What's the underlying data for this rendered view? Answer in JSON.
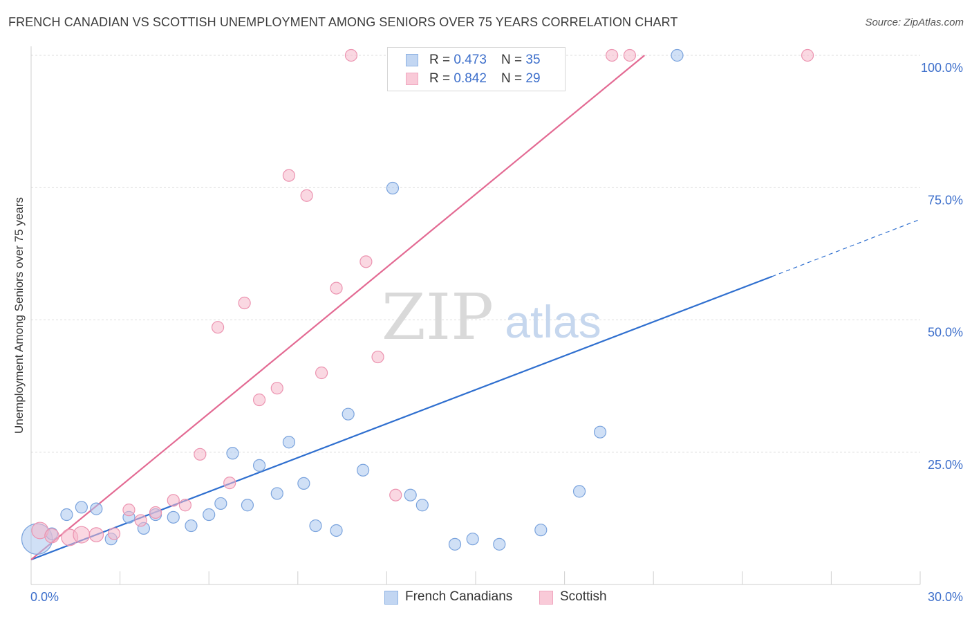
{
  "title": "FRENCH CANADIAN VS SCOTTISH UNEMPLOYMENT AMONG SENIORS OVER 75 YEARS CORRELATION CHART",
  "source": "Source: ZipAtlas.com",
  "watermark": {
    "zip": "ZIP",
    "atlas": "atlas"
  },
  "legend_top": [
    {
      "r_label": "R = ",
      "r_value": "0.473",
      "n_label": "N = ",
      "n_value": "35"
    },
    {
      "r_label": "R = ",
      "r_value": "0.842",
      "n_label": "N = ",
      "n_value": "29"
    }
  ],
  "legend_bottom": [
    "French Canadians",
    "Scottish"
  ],
  "chart_data": {
    "type": "scatter",
    "title": "FRENCH CANADIAN VS SCOTTISH UNEMPLOYMENT AMONG SENIORS OVER 75 YEARS CORRELATION CHART",
    "xlabel": "",
    "ylabel": "Unemployment Among Seniors over 75 years",
    "xlim": [
      0,
      30
    ],
    "ylim": [
      0,
      100
    ],
    "x_tick_labels": [
      "0.0%",
      "30.0%"
    ],
    "y_tick_labels": [
      "25.0%",
      "50.0%",
      "75.0%",
      "100.0%"
    ],
    "y_ticks": [
      25,
      50,
      75,
      100
    ],
    "grid": true,
    "legend_position": "top-center",
    "colors": {
      "french_canadians": "#a9c6ee",
      "french_canadians_edge": "#7aa3dd",
      "french_canadians_line": "#2f6fcf",
      "scottish": "#f5b8cb",
      "scottish_edge": "#ec93b0",
      "scottish_line": "#e36a93",
      "axis_label": "#3d6fcb"
    },
    "series": [
      {
        "name": "French Canadians",
        "r": 0.473,
        "n": 35,
        "points": [
          [
            0.2,
            8.6,
            26
          ],
          [
            0.7,
            9.6,
            10
          ],
          [
            1.2,
            13.2,
            10
          ],
          [
            1.7,
            14.6,
            10
          ],
          [
            2.2,
            14.3,
            10
          ],
          [
            2.7,
            8.6,
            10
          ],
          [
            3.3,
            12.7,
            10
          ],
          [
            3.8,
            10.6,
            10
          ],
          [
            4.2,
            13.2,
            10
          ],
          [
            4.8,
            12.7,
            10
          ],
          [
            5.4,
            11.1,
            10
          ],
          [
            6.0,
            13.2,
            10
          ],
          [
            6.4,
            15.3,
            10
          ],
          [
            6.8,
            24.8,
            10
          ],
          [
            7.3,
            15.0,
            10
          ],
          [
            7.7,
            22.5,
            10
          ],
          [
            8.3,
            17.2,
            10
          ],
          [
            8.7,
            26.9,
            10
          ],
          [
            9.2,
            19.1,
            10
          ],
          [
            9.6,
            11.1,
            10
          ],
          [
            10.3,
            10.2,
            10
          ],
          [
            10.7,
            32.2,
            10
          ],
          [
            11.2,
            21.6,
            10
          ],
          [
            12.2,
            74.9,
            10
          ],
          [
            12.8,
            16.9,
            10
          ],
          [
            13.2,
            15.0,
            10
          ],
          [
            13.7,
            100.0,
            10
          ],
          [
            14.3,
            7.6,
            10
          ],
          [
            14.9,
            8.6,
            10
          ],
          [
            15.8,
            7.6,
            10
          ],
          [
            16.1,
            100.0,
            10
          ],
          [
            17.2,
            10.3,
            10
          ],
          [
            18.5,
            17.6,
            10
          ],
          [
            19.2,
            28.8,
            10
          ],
          [
            21.8,
            100.0,
            10
          ]
        ]
      },
      {
        "name": "Scottish",
        "r": 0.842,
        "n": 29,
        "points": [
          [
            0.3,
            10.2,
            14
          ],
          [
            0.7,
            9.2,
            12
          ],
          [
            1.3,
            8.9,
            14
          ],
          [
            1.7,
            9.4,
            14
          ],
          [
            2.2,
            9.4,
            12
          ],
          [
            2.8,
            9.6,
            10
          ],
          [
            3.3,
            14.1,
            10
          ],
          [
            3.7,
            12.1,
            10
          ],
          [
            4.2,
            13.6,
            10
          ],
          [
            4.8,
            15.9,
            10
          ],
          [
            5.2,
            15.0,
            10
          ],
          [
            5.7,
            24.6,
            10
          ],
          [
            6.3,
            48.6,
            10
          ],
          [
            6.7,
            19.2,
            10
          ],
          [
            7.2,
            53.2,
            10
          ],
          [
            7.7,
            34.9,
            10
          ],
          [
            8.3,
            37.1,
            10
          ],
          [
            8.7,
            77.3,
            10
          ],
          [
            9.3,
            73.5,
            10
          ],
          [
            9.8,
            40.0,
            10
          ],
          [
            10.3,
            56.0,
            10
          ],
          [
            10.8,
            100.0,
            10
          ],
          [
            11.3,
            61.0,
            10
          ],
          [
            11.7,
            43.0,
            10
          ],
          [
            12.3,
            16.9,
            10
          ],
          [
            14.0,
            100.0,
            10
          ],
          [
            19.6,
            100.0,
            10
          ],
          [
            20.2,
            100.0,
            10
          ],
          [
            26.2,
            100.0,
            10
          ]
        ]
      }
    ],
    "trend_lines": [
      {
        "name": "French Canadians",
        "x_start": 0,
        "y_start": 4.7,
        "x_solid_end": 25.0,
        "y_solid_end": 58.2,
        "x_dashed_end": 30.0,
        "y_dashed_end": 69.0
      },
      {
        "name": "Scottish",
        "x_start": 0,
        "y_start": 4.7,
        "x_end": 20.7,
        "y_end": 100.0
      }
    ]
  }
}
